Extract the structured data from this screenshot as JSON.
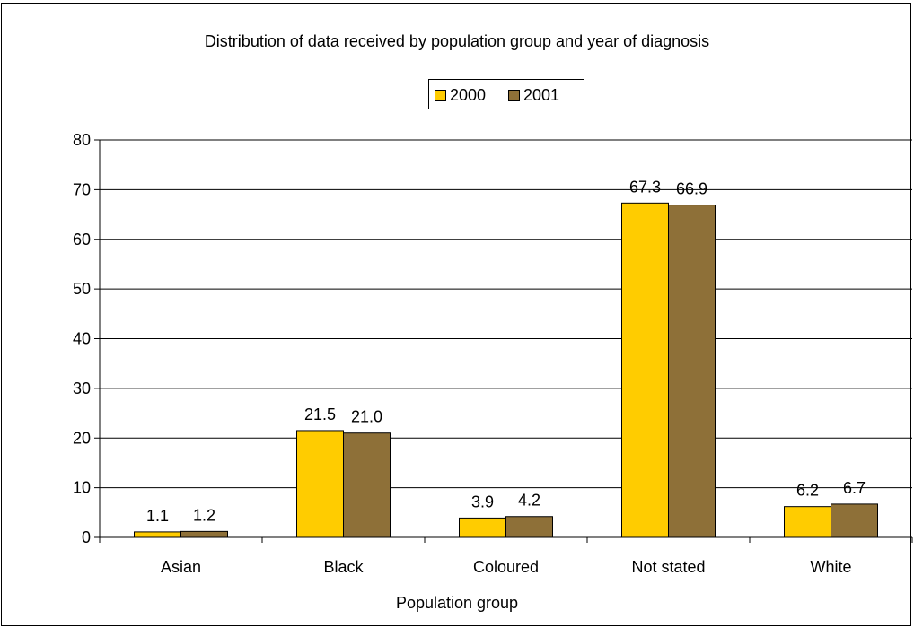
{
  "chart_data": {
    "type": "bar",
    "title": "Distribution of data received by population group and year of diagnosis",
    "xlabel": "Population group",
    "ylabel": "",
    "categories": [
      "Asian",
      "Black",
      "Coloured",
      "Not stated",
      "White"
    ],
    "series": [
      {
        "name": "2000",
        "color": "#FFCC00",
        "values": [
          1.1,
          21.5,
          3.9,
          67.3,
          6.2
        ],
        "labels": [
          "1.1",
          "21.5",
          "3.9",
          "67.3",
          "6.2"
        ]
      },
      {
        "name": "2001",
        "color": "#8E7038",
        "values": [
          1.2,
          21.0,
          4.2,
          66.9,
          6.7
        ],
        "labels": [
          "1.2",
          "21.0",
          "4.2",
          "66.9",
          "6.7"
        ]
      }
    ],
    "ylim": [
      0,
      80
    ],
    "yticks": [
      0,
      10,
      20,
      30,
      40,
      50,
      60,
      70,
      80
    ],
    "grid": true,
    "legend_position": "top-center"
  }
}
